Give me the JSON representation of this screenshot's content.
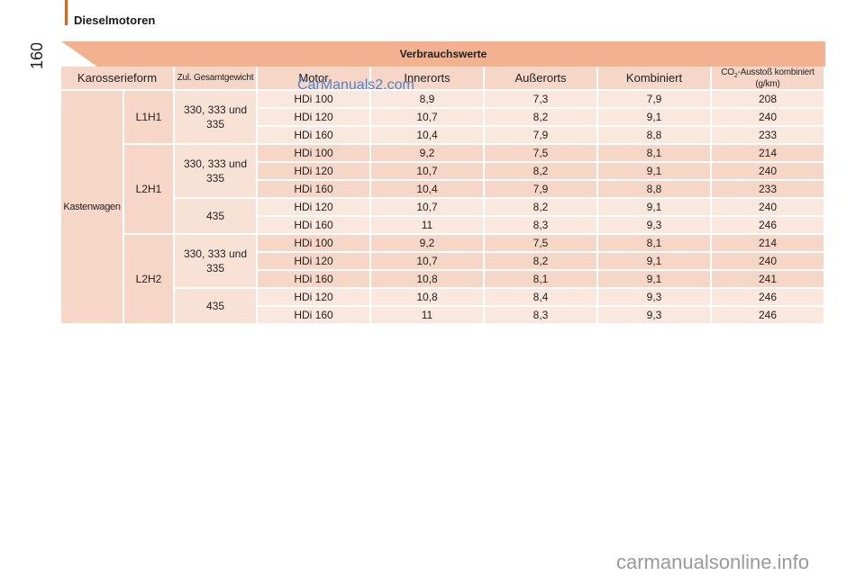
{
  "header": {
    "section_title": "Dieselmotoren",
    "page_number": "160"
  },
  "watermarks": {
    "top": "CarManuals2.com",
    "bottom": "carmanualsonline.info"
  },
  "table": {
    "title": "Verbrauchswerte",
    "columns": {
      "body": "Karosserieform",
      "weight": "Zul. Gesamtgewicht",
      "engine": "Motor",
      "city": "Innerorts",
      "highway": "Außerorts",
      "combined": "Kombiniert",
      "co2_prefix": "CO",
      "co2_sub": "2",
      "co2_suffix": "-Ausstoß kombiniert (g/km)"
    },
    "body_type": "Kastenwagen",
    "groups": [
      {
        "variant": "L1H1",
        "weights": [
          {
            "label": "330, 333 und 335",
            "rows": [
              {
                "engine": "HDi 100",
                "city": "8,9",
                "highway": "7,3",
                "combined": "7,9",
                "co2": "208"
              },
              {
                "engine": "HDi 120",
                "city": "10,7",
                "highway": "8,2",
                "combined": "9,1",
                "co2": "240"
              },
              {
                "engine": "HDi 160",
                "city": "10,4",
                "highway": "7,9",
                "combined": "8,8",
                "co2": "233"
              }
            ]
          }
        ]
      },
      {
        "variant": "L2H1",
        "weights": [
          {
            "label": "330, 333 und 335",
            "rows": [
              {
                "engine": "HDi 100",
                "city": "9,2",
                "highway": "7,5",
                "combined": "8,1",
                "co2": "214"
              },
              {
                "engine": "HDi 120",
                "city": "10,7",
                "highway": "8,2",
                "combined": "9,1",
                "co2": "240"
              },
              {
                "engine": "HDi 160",
                "city": "10,4",
                "highway": "7,9",
                "combined": "8,8",
                "co2": "233"
              }
            ]
          },
          {
            "label": "435",
            "rows": [
              {
                "engine": "HDi 120",
                "city": "10,7",
                "highway": "8,2",
                "combined": "9,1",
                "co2": "240"
              },
              {
                "engine": "HDi 160",
                "city": "11",
                "highway": "8,3",
                "combined": "9,3",
                "co2": "246"
              }
            ]
          }
        ]
      },
      {
        "variant": "L2H2",
        "weights": [
          {
            "label": "330, 333 und 335",
            "rows": [
              {
                "engine": "HDi 100",
                "city": "9,2",
                "highway": "7,5",
                "combined": "8,1",
                "co2": "214"
              },
              {
                "engine": "HDi 120",
                "city": "10,7",
                "highway": "8,2",
                "combined": "9,1",
                "co2": "240"
              },
              {
                "engine": "HDi 160",
                "city": "10,8",
                "highway": "8,1",
                "combined": "9,1",
                "co2": "241"
              }
            ]
          },
          {
            "label": "435",
            "rows": [
              {
                "engine": "HDi 120",
                "city": "10,8",
                "highway": "8,4",
                "combined": "9,3",
                "co2": "246"
              },
              {
                "engine": "HDi 160",
                "city": "11",
                "highway": "8,3",
                "combined": "9,3",
                "co2": "246"
              }
            ]
          }
        ]
      }
    ]
  },
  "colors": {
    "accent": "#d9642b",
    "title_band": "#f2b18f",
    "header_cell": "#f6d6c6",
    "row_light": "#fae8de"
  }
}
